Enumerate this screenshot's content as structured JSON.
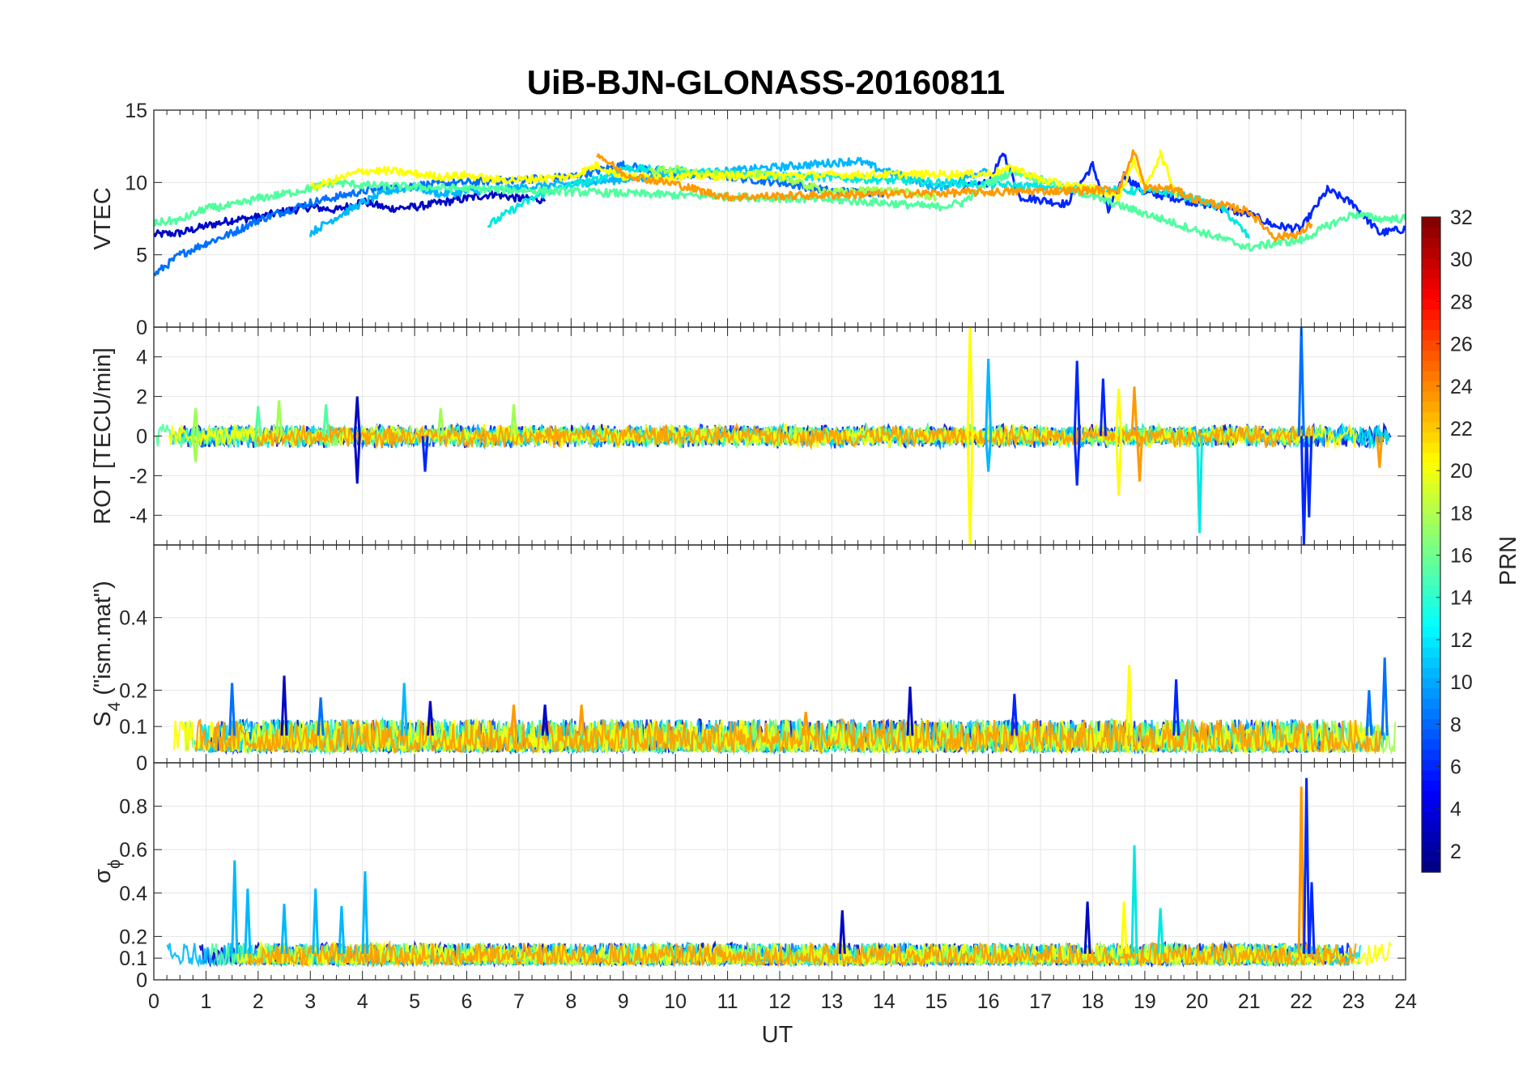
{
  "chart_data": {
    "type": "line",
    "title": "UiB-BJN-GLONASS-20160811",
    "xlabel": "UT",
    "x_ticks": [
      "0",
      "1",
      "2",
      "3",
      "4",
      "5",
      "6",
      "7",
      "8",
      "9",
      "10",
      "11",
      "12",
      "13",
      "14",
      "15",
      "16",
      "17",
      "18",
      "19",
      "20",
      "21",
      "22",
      "23",
      "24"
    ],
    "xlim": [
      0,
      24
    ],
    "grid": true,
    "colorbar": {
      "label": "PRN",
      "ticks": [
        "2",
        "4",
        "6",
        "8",
        "10",
        "12",
        "14",
        "16",
        "18",
        "20",
        "22",
        "24",
        "26",
        "28",
        "30",
        "32"
      ],
      "range": [
        1,
        32
      ],
      "colormap": "jet",
      "position": "right"
    },
    "panels": [
      {
        "id": "vtec",
        "ylabel": "VTEC",
        "ylim": [
          0,
          15
        ],
        "y_ticks": [
          "0",
          "5",
          "10",
          "15"
        ],
        "y_tick_values": [
          0,
          5,
          10,
          15
        ],
        "series": [
          {
            "prn": 2,
            "color": "#0008c4",
            "x": [
              0.0,
              0.5,
              1.0,
              1.5,
              2.0,
              2.5,
              3.0,
              3.5,
              4.0,
              4.5,
              5.0,
              5.5,
              6.0,
              6.5,
              7.0,
              7.5
            ],
            "y": [
              6.4,
              6.5,
              7.0,
              7.4,
              7.6,
              8.0,
              8.3,
              8.1,
              8.7,
              8.2,
              8.3,
              8.6,
              8.9,
              9.2,
              8.9,
              8.8
            ]
          },
          {
            "prn": 4,
            "color": "#0026ff",
            "x": [
              15.5,
              16.0,
              16.3,
              16.6,
              17.0,
              17.5,
              18.0,
              18.3,
              18.6,
              19.0,
              19.5,
              20.0,
              20.5,
              21.0,
              21.5,
              22.0,
              22.5,
              23.0,
              23.5,
              24.0
            ],
            "y": [
              9.6,
              10.0,
              12.0,
              9.0,
              8.8,
              8.5,
              11.2,
              8.0,
              10.5,
              9.3,
              9.0,
              8.6,
              8.2,
              7.8,
              7.0,
              6.8,
              9.5,
              8.5,
              6.5,
              6.8
            ]
          },
          {
            "prn": 7,
            "color": "#0070ff",
            "x": [
              0.0,
              0.5,
              1.0,
              1.5,
              2.0,
              2.5,
              3.0,
              3.5,
              4.0,
              4.5,
              5.0,
              6.0,
              7.0,
              8.0,
              9.0,
              10.0,
              11.0,
              12.0,
              13.0,
              14.0
            ],
            "y": [
              3.6,
              5.0,
              5.8,
              6.5,
              7.4,
              8.0,
              8.6,
              9.0,
              9.4,
              9.6,
              9.8,
              10.0,
              10.2,
              10.4,
              11.2,
              10.6,
              10.4,
              10.0,
              9.4,
              9.3
            ]
          },
          {
            "prn": 11,
            "color": "#00b8ff",
            "x": [
              3.0,
              3.5,
              4.0,
              4.5,
              5.0,
              5.5,
              13.5,
              14.0,
              14.5,
              15.0,
              15.5,
              16.0
            ],
            "y": [
              6.5,
              7.6,
              8.6,
              9.4,
              9.7,
              9.2,
              11.5,
              10.8,
              10.3,
              9.6,
              10.2,
              11.0
            ]
          },
          {
            "prn": 13,
            "color": "#00e8e0",
            "x": [
              6.4,
              7.0,
              7.5,
              8.0,
              8.5,
              9.0,
              9.5,
              10.0,
              19.5,
              20.0,
              20.5,
              21.0
            ],
            "y": [
              7.0,
              8.4,
              9.3,
              9.8,
              10.2,
              11.0,
              10.9,
              10.8,
              9.3,
              8.8,
              8.2,
              6.2
            ]
          },
          {
            "prn": 16,
            "color": "#50ff9f",
            "x": [
              0.0,
              0.5,
              1.0,
              1.5,
              2.0,
              2.5,
              3.0,
              3.5,
              4.0,
              13.0,
              14.0,
              15.0,
              15.5,
              16.0,
              16.5,
              17.0,
              21.0,
              21.5,
              22.0,
              22.5,
              23.0,
              23.5,
              24.0
            ],
            "y": [
              7.2,
              7.4,
              8.2,
              8.4,
              8.9,
              9.2,
              9.6,
              10.0,
              9.8,
              8.8,
              8.6,
              8.3,
              8.6,
              10.0,
              10.8,
              10.2,
              5.5,
              5.8,
              6.0,
              7.0,
              7.8,
              7.5,
              7.5
            ]
          },
          {
            "prn": 18,
            "color": "#9fff50",
            "x": [
              9.5,
              10.0,
              10.5,
              11.0,
              11.5,
              12.0,
              12.5,
              13.0,
              14.0,
              15.0
            ],
            "y": [
              10.8,
              10.9,
              10.6,
              10.5,
              10.6,
              10.4,
              9.8,
              9.3,
              9.5,
              9.0
            ]
          },
          {
            "prn": 20,
            "color": "#ffff00",
            "x": [
              3.0,
              3.5,
              4.0,
              4.5,
              5.0,
              5.5,
              6.0,
              6.5,
              7.0,
              7.5,
              8.0,
              8.5,
              9.0,
              16.0,
              16.5,
              17.0,
              17.5,
              18.0,
              18.5,
              18.8,
              19.0,
              19.3,
              19.6
            ],
            "y": [
              9.6,
              10.2,
              10.8,
              10.8,
              10.6,
              10.4,
              10.5,
              10.2,
              10.2,
              10.3,
              10.4,
              11.2,
              10.4,
              10.6,
              11.0,
              10.2,
              9.8,
              9.6,
              9.0,
              11.5,
              9.5,
              12.0,
              9.2
            ]
          },
          {
            "prn": 23,
            "color": "#ff9a00",
            "x": [
              8.5,
              9.0,
              9.5,
              10.0,
              10.5,
              11.0,
              18.5,
              18.8,
              19.0,
              19.5,
              20.0,
              20.5,
              21.0,
              21.5,
              22.0,
              22.2
            ],
            "y": [
              12.0,
              10.6,
              10.2,
              9.9,
              9.4,
              9.0,
              9.5,
              12.2,
              9.6,
              9.6,
              8.8,
              8.4,
              8.0,
              6.2,
              6.5,
              7.2
            ]
          }
        ]
      },
      {
        "id": "rot",
        "ylabel": "ROT [TECU/min]",
        "ylim": [
          -5.5,
          5.5
        ],
        "y_ticks": [
          "-4",
          "-2",
          "0",
          "2",
          "4"
        ],
        "y_tick_values": [
          -4,
          -2,
          0,
          2,
          4
        ],
        "background_band": {
          "xmin": 0,
          "xmax": 24,
          "amplitude": 0.45
        },
        "spikes": [
          {
            "x": 0.8,
            "y": 1.4,
            "color": "#9fff50"
          },
          {
            "x": 0.8,
            "y": -1.3,
            "color": "#9fff50"
          },
          {
            "x": 2.0,
            "y": 1.5,
            "color": "#50ff9f"
          },
          {
            "x": 2.4,
            "y": 1.8,
            "color": "#9fff50"
          },
          {
            "x": 3.3,
            "y": 1.6,
            "color": "#50ff9f"
          },
          {
            "x": 3.9,
            "y": 2.0,
            "color": "#0008c4"
          },
          {
            "x": 3.9,
            "y": -2.4,
            "color": "#0008c4"
          },
          {
            "x": 5.2,
            "y": -1.8,
            "color": "#0026ff"
          },
          {
            "x": 5.5,
            "y": 1.4,
            "color": "#9fff50"
          },
          {
            "x": 6.9,
            "y": 1.6,
            "color": "#9fff50"
          },
          {
            "x": 15.65,
            "y": 5.5,
            "color": "#ffff00"
          },
          {
            "x": 15.65,
            "y": -5.5,
            "color": "#ffff00"
          },
          {
            "x": 16.0,
            "y": 3.9,
            "color": "#00b8ff"
          },
          {
            "x": 16.0,
            "y": -1.8,
            "color": "#00b8ff"
          },
          {
            "x": 17.7,
            "y": 3.8,
            "color": "#0026ff"
          },
          {
            "x": 17.7,
            "y": -2.5,
            "color": "#0026ff"
          },
          {
            "x": 18.2,
            "y": 2.9,
            "color": "#0026ff"
          },
          {
            "x": 18.5,
            "y": 2.4,
            "color": "#ffff00"
          },
          {
            "x": 18.5,
            "y": -3.0,
            "color": "#ffff00"
          },
          {
            "x": 18.8,
            "y": 2.5,
            "color": "#ff9a00"
          },
          {
            "x": 18.9,
            "y": -2.3,
            "color": "#ff9a00"
          },
          {
            "x": 20.05,
            "y": -4.9,
            "color": "#00e8e0"
          },
          {
            "x": 22.0,
            "y": 5.5,
            "color": "#0070ff"
          },
          {
            "x": 22.05,
            "y": -5.5,
            "color": "#0026ff"
          },
          {
            "x": 22.15,
            "y": -4.1,
            "color": "#0026ff"
          },
          {
            "x": 23.5,
            "y": -1.6,
            "color": "#ff9a00"
          }
        ]
      },
      {
        "id": "s4",
        "ylabel": "S",
        "ylabel_subscript": "4",
        "ylabel_suffix": " (\"ism.mat\")",
        "ylim": [
          0,
          0.6
        ],
        "y_ticks": [
          "0",
          "0.1",
          "0.2",
          "0.4"
        ],
        "y_tick_values": [
          0,
          0.1,
          0.2,
          0.4
        ],
        "background_band": {
          "min": 0.03,
          "max": 0.12
        },
        "spikes": [
          {
            "x": 1.5,
            "y": 0.22,
            "color": "#0070ff"
          },
          {
            "x": 2.5,
            "y": 0.24,
            "color": "#0008c4"
          },
          {
            "x": 3.2,
            "y": 0.18,
            "color": "#0070ff"
          },
          {
            "x": 4.8,
            "y": 0.22,
            "color": "#00b8ff"
          },
          {
            "x": 5.3,
            "y": 0.17,
            "color": "#0008c4"
          },
          {
            "x": 6.9,
            "y": 0.16,
            "color": "#ff9a00"
          },
          {
            "x": 7.5,
            "y": 0.16,
            "color": "#0008c4"
          },
          {
            "x": 8.2,
            "y": 0.16,
            "color": "#ff9a00"
          },
          {
            "x": 12.5,
            "y": 0.14,
            "color": "#ff9a00"
          },
          {
            "x": 14.5,
            "y": 0.21,
            "color": "#0008c4"
          },
          {
            "x": 16.5,
            "y": 0.19,
            "color": "#0026ff"
          },
          {
            "x": 18.7,
            "y": 0.27,
            "color": "#ffff00"
          },
          {
            "x": 19.6,
            "y": 0.23,
            "color": "#0026ff"
          },
          {
            "x": 23.6,
            "y": 0.29,
            "color": "#0070ff"
          },
          {
            "x": 23.3,
            "y": 0.2,
            "color": "#0070ff"
          }
        ]
      },
      {
        "id": "sigma_phi",
        "ylabel": "σ",
        "ylabel_subscript": "ϕ",
        "ylim": [
          0,
          1.0
        ],
        "y_ticks": [
          "0",
          "0.1",
          "0.2",
          "0.4",
          "0.6",
          "0.8"
        ],
        "y_tick_values": [
          0,
          0.1,
          0.2,
          0.4,
          0.6,
          0.8
        ],
        "background_band": {
          "min": 0.07,
          "max": 0.17
        },
        "spikes": [
          {
            "x": 1.55,
            "y": 0.55,
            "color": "#00b8ff"
          },
          {
            "x": 1.8,
            "y": 0.42,
            "color": "#00b8ff"
          },
          {
            "x": 2.5,
            "y": 0.35,
            "color": "#00b8ff"
          },
          {
            "x": 3.1,
            "y": 0.42,
            "color": "#00b8ff"
          },
          {
            "x": 3.6,
            "y": 0.34,
            "color": "#00b8ff"
          },
          {
            "x": 4.05,
            "y": 0.5,
            "color": "#00b8ff"
          },
          {
            "x": 13.2,
            "y": 0.32,
            "color": "#0008c4"
          },
          {
            "x": 17.9,
            "y": 0.36,
            "color": "#0008c4"
          },
          {
            "x": 18.8,
            "y": 0.62,
            "color": "#00e8e0"
          },
          {
            "x": 18.6,
            "y": 0.36,
            "color": "#ffff00"
          },
          {
            "x": 19.3,
            "y": 0.33,
            "color": "#00e8e0"
          },
          {
            "x": 22.0,
            "y": 0.89,
            "color": "#ff9a00"
          },
          {
            "x": 22.1,
            "y": 0.93,
            "color": "#0026ff"
          },
          {
            "x": 22.2,
            "y": 0.45,
            "color": "#0026ff"
          }
        ]
      }
    ]
  }
}
